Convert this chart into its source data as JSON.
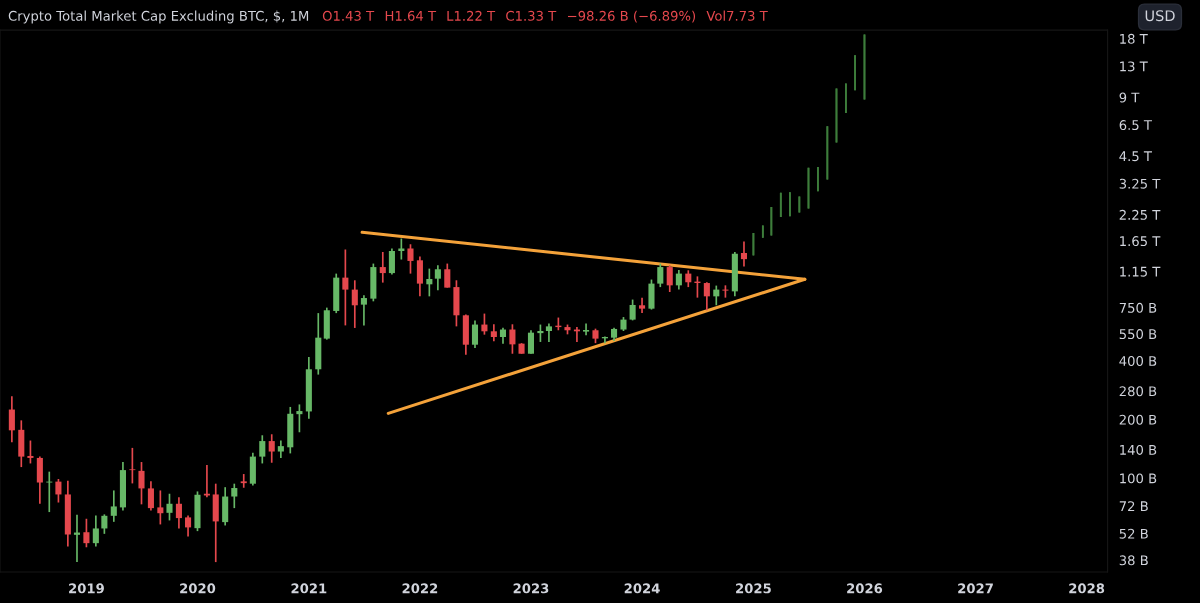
{
  "chart_data": {
    "type": "candlestick",
    "title": "Crypto Total Market Cap Excluding BTC, $, 1M",
    "annotations": [
      "O1.43 T",
      "H1.64 T",
      "L1.22 T",
      "C1.33 T",
      "−98.26 B (−6.89%)",
      "Vol7.73 T",
      "USD"
    ],
    "xlim": [
      "2018-03-23",
      "2028-03-10"
    ],
    "xticks": [
      {
        "value": "2019-01",
        "label": "2019"
      },
      {
        "value": "2020-01",
        "label": "2020"
      },
      {
        "value": "2021-01",
        "label": "2021"
      },
      {
        "value": "2022-01",
        "label": "2022"
      },
      {
        "value": "2023-01",
        "label": "2023"
      },
      {
        "value": "2024-01",
        "label": "2024"
      },
      {
        "value": "2025-01",
        "label": "2025"
      },
      {
        "value": "2026-01",
        "label": "2026"
      },
      {
        "value": "2027-01",
        "label": "2027"
      },
      {
        "value": "2028-01",
        "label": "2028"
      }
    ],
    "log": "y",
    "ylim": [
      33000000000.0,
      19900000000000.0
    ],
    "yticks": [
      {
        "value": 38000000000.0,
        "label": "38 B"
      },
      {
        "value": 52000000000.0,
        "label": "52 B"
      },
      {
        "value": 72000000000.0,
        "label": "72 B"
      },
      {
        "value": 100000000000.0,
        "label": "100 B"
      },
      {
        "value": 140000000000.0,
        "label": "140 B"
      },
      {
        "value": 200000000000.0,
        "label": "200 B"
      },
      {
        "value": 280000000000.0,
        "label": "280 B"
      },
      {
        "value": 400000000000.0,
        "label": "400 B"
      },
      {
        "value": 550000000000.0,
        "label": "550 B"
      },
      {
        "value": 750000000000.0,
        "label": "750 B"
      },
      {
        "value": 1150000000000.0,
        "label": "1.15 T"
      },
      {
        "value": 1650000000000.0,
        "label": "1.65 T"
      },
      {
        "value": 2250000000000.0,
        "label": "2.25 T"
      },
      {
        "value": 3250000000000.0,
        "label": "3.25 T"
      },
      {
        "value": 4500000000000.0,
        "label": "4.5 T"
      },
      {
        "value": 6500000000000.0,
        "label": "6.5 T"
      },
      {
        "value": 9000000000000.0,
        "label": "9 T"
      },
      {
        "value": 13000000000000.0,
        "label": "13 T"
      },
      {
        "value": 18000000000000.0,
        "label": "18 T"
      }
    ],
    "series": [
      {
        "type": "candlestick",
        "x": [
          "2018-05",
          "2018-06",
          "2018-07",
          "2018-08",
          "2018-09",
          "2018-10",
          "2018-11",
          "2018-12",
          "2019-01",
          "2019-02",
          "2019-03",
          "2019-04",
          "2019-05",
          "2019-06",
          "2019-07",
          "2019-08",
          "2019-09",
          "2019-10",
          "2019-11",
          "2019-12",
          "2020-01",
          "2020-02",
          "2020-03",
          "2020-04",
          "2020-05",
          "2020-06",
          "2020-07",
          "2020-08",
          "2020-09",
          "2020-10",
          "2020-11",
          "2020-12",
          "2021-01",
          "2021-02",
          "2021-03",
          "2021-04",
          "2021-05",
          "2021-06",
          "2021-07",
          "2021-08",
          "2021-09",
          "2021-10",
          "2021-11",
          "2021-12",
          "2022-01",
          "2022-02",
          "2022-03",
          "2022-04",
          "2022-05",
          "2022-06",
          "2022-07",
          "2022-08",
          "2022-09",
          "2022-10",
          "2022-11",
          "2022-12",
          "2023-01",
          "2023-02",
          "2023-03",
          "2023-04",
          "2023-05",
          "2023-06",
          "2023-07",
          "2023-08",
          "2023-09",
          "2023-10",
          "2023-11",
          "2023-12",
          "2024-01",
          "2024-02",
          "2024-03",
          "2024-04",
          "2024-05",
          "2024-06",
          "2024-07",
          "2024-08",
          "2024-09",
          "2024-10",
          "2024-11",
          "2024-12"
        ],
        "ohlc": [
          [
            225000000000.0,
            263000000000.0,
            153000000000.0,
            176000000000.0
          ],
          [
            177000000000.0,
            198000000000.0,
            114000000000.0,
            129000000000.0
          ],
          [
            130000000000.0,
            156000000000.0,
            119000000000.0,
            127000000000.0
          ],
          [
            127000000000.0,
            129000000000.0,
            74000000000.0,
            95000000000.0
          ],
          [
            95000000000.0,
            108000000000.0,
            67000000000.0,
            96000000000.0
          ],
          [
            96000000000.0,
            99000000000.0,
            75000000000.0,
            82500000000.0
          ],
          [
            82500000000.0,
            97000000000.0,
            44600000000.0,
            51400000000.0
          ],
          [
            51200000000.0,
            65000000000.0,
            37100000000.0,
            52600000000.0
          ],
          [
            52800000000.0,
            61900000000.0,
            44200000000.0,
            46400000000.0
          ],
          [
            46400000000.0,
            64400000000.0,
            44600000000.0,
            55200000000.0
          ],
          [
            55200000000.0,
            65200000000.0,
            51800000000.0,
            64100000000.0
          ],
          [
            64100000000.0,
            86500000000.0,
            59700000000.0,
            71600000000.0
          ],
          [
            70800000000.0,
            121000000000.0,
            68300000000.0,
            110000000000.0
          ],
          [
            111000000000.0,
            143000000000.0,
            94000000000.0,
            110000000000.0
          ],
          [
            109000000000.0,
            121000000000.0,
            73400000000.0,
            88600000000.0
          ],
          [
            88600000000.0,
            96300000000.0,
            68300000000.0,
            70200000000.0
          ],
          [
            70800000000.0,
            86500000000.0,
            57900000000.0,
            66100000000.0
          ],
          [
            66400000000.0,
            83200000000.0,
            60700000000.0,
            73900000000.0
          ],
          [
            73900000000.0,
            79900000000.0,
            55200000000.0,
            62400000000.0
          ],
          [
            62900000000.0,
            64400000000.0,
            50200000000.0,
            55900000000.0
          ],
          [
            55400000000.0,
            85500000000.0,
            53500000000.0,
            82200000000.0
          ],
          [
            83200000000.0,
            117000000000.0,
            79900000000.0,
            81500000000.0
          ],
          [
            82500000000.0,
            93700000000.0,
            37100000000.0,
            60000000000.0
          ],
          [
            59500000000.0,
            89900000000.0,
            57200000000.0,
            80500000000.0
          ],
          [
            80500000000.0,
            93700000000.0,
            70200000000.0,
            89000000000.0
          ],
          [
            96300000000.0,
            105000000000.0,
            89300000000.0,
            94300000000.0
          ],
          [
            93700000000.0,
            135000000000.0,
            91800000000.0,
            129000000000.0
          ],
          [
            129000000000.0,
            166000000000.0,
            119000000000.0,
            155000000000.0
          ],
          [
            155000000000.0,
            168000000000.0,
            120000000000.0,
            137000000000.0
          ],
          [
            137000000000.0,
            156000000000.0,
            127000000000.0,
            146000000000.0
          ],
          [
            144000000000.0,
            232000000000.0,
            134000000000.0,
            214000000000.0
          ],
          [
            213000000000.0,
            239000000000.0,
            172000000000.0,
            221000000000.0
          ],
          [
            220000000000.0,
            418000000000.0,
            202000000000.0,
            362000000000.0
          ],
          [
            362000000000.0,
            703000000000.0,
            340000000000.0,
            526000000000.0
          ],
          [
            520000000000.0,
            750000000000.0,
            514000000000.0,
            727000000000.0
          ],
          [
            721000000000.0,
            1121000000000.0,
            703000000000.0,
            1069000000000.0
          ],
          [
            1069000000000.0,
            1489000000000.0,
            608000000000.0,
            928000000000.0
          ],
          [
            928000000000.0,
            1036000000000.0,
            590000000000.0,
            771000000000.0
          ],
          [
            777000000000.0,
            867000000000.0,
            608000000000.0,
            840000000000.0
          ],
          [
            834000000000.0,
            1262000000000.0,
            808000000000.0,
            1211000000000.0
          ],
          [
            1211000000000.0,
            1447000000000.0,
            1008000000000.0,
            1128000000000.0
          ],
          [
            1128000000000.0,
            1507000000000.0,
            1108000000000.0,
            1464000000000.0
          ],
          [
            1464000000000.0,
            1695000000000.0,
            1324000000000.0,
            1507000000000.0
          ],
          [
            1507000000000.0,
            1586000000000.0,
            1121000000000.0,
            1302000000000.0
          ],
          [
            1312000000000.0,
            1374000000000.0,
            857000000000.0,
            996000000000.0
          ],
          [
            988000000000.0,
            1189000000000.0,
            857000000000.0,
            1052000000000.0
          ],
          [
            1056000000000.0,
            1237000000000.0,
            920000000000.0,
            1180000000000.0
          ],
          [
            1180000000000.0,
            1262000000000.0,
            950000000000.0,
            950000000000.0
          ],
          [
            956000000000.0,
            1036000000000.0,
            601000000000.0,
            685000000000.0
          ],
          [
            685000000000.0,
            691000000000.0,
            430000000000.0,
            484000000000.0
          ],
          [
            484000000000.0,
            645000000000.0,
            465000000000.0,
            614000000000.0
          ],
          [
            614000000000.0,
            699000000000.0,
            545000000000.0,
            567000000000.0
          ],
          [
            567000000000.0,
            616000000000.0,
            504000000000.0,
            530000000000.0
          ],
          [
            530000000000.0,
            592000000000.0,
            490000000000.0,
            579000000000.0
          ],
          [
            579000000000.0,
            616000000000.0,
            435000000000.0,
            486000000000.0
          ],
          [
            490000000000.0,
            493000000000.0,
            435000000000.0,
            435000000000.0
          ],
          [
            435000000000.0,
            574000000000.0,
            435000000000.0,
            558000000000.0
          ],
          [
            555000000000.0,
            614000000000.0,
            500000000000.0,
            569000000000.0
          ],
          [
            569000000000.0,
            621000000000.0,
            500000000000.0,
            601000000000.0
          ],
          [
            606000000000.0,
            667000000000.0,
            574000000000.0,
            596000000000.0
          ],
          [
            596000000000.0,
            614000000000.0,
            547000000000.0,
            574000000000.0
          ],
          [
            579000000000.0,
            596000000000.0,
            500000000000.0,
            567000000000.0
          ],
          [
            565000000000.0,
            621000000000.0,
            541000000000.0,
            576000000000.0
          ],
          [
            574000000000.0,
            585000000000.0,
            493000000000.0,
            520000000000.0
          ],
          [
            522000000000.0,
            534000000000.0,
            493000000000.0,
            530000000000.0
          ],
          [
            526000000000.0,
            592000000000.0,
            505000000000.0,
            583000000000.0
          ],
          [
            579000000000.0,
            671000000000.0,
            569000000000.0,
            651000000000.0
          ],
          [
            651000000000.0,
            825000000000.0,
            645000000000.0,
            774000000000.0
          ],
          [
            771000000000.0,
            844000000000.0,
            703000000000.0,
            741000000000.0
          ],
          [
            741000000000.0,
            1045000000000.0,
            733000000000.0,
            996000000000.0
          ],
          [
            996000000000.0,
            1262000000000.0,
            956000000000.0,
            1211000000000.0
          ],
          [
            1211000000000.0,
            1237000000000.0,
            902000000000.0,
            976000000000.0
          ],
          [
            976000000000.0,
            1170000000000.0,
            928000000000.0,
            1121000000000.0
          ],
          [
            1121000000000.0,
            1166000000000.0,
            956000000000.0,
            1012000000000.0
          ],
          [
            1020000000000.0,
            1085000000000.0,
            844000000000.0,
            1003000000000.0
          ],
          [
            1003000000000.0,
            1012000000000.0,
            727000000000.0,
            857000000000.0
          ],
          [
            857000000000.0,
            973000000000.0,
            771000000000.0,
            928000000000.0
          ],
          [
            928000000000.0,
            976000000000.0,
            844000000000.0,
            917000000000.0
          ],
          [
            909000000000.0,
            1447000000000.0,
            857000000000.0,
            1419000000000.0
          ],
          [
            1430000000000.0,
            1640000000000.0,
            1220000000000.0,
            1330000000000.0
          ]
        ],
        "colors": [
          "#e5484d",
          "#e5484d",
          "#e5484d",
          "#e5484d",
          "#67b867",
          "#e5484d",
          "#e5484d",
          "#67b867",
          "#e5484d",
          "#67b867",
          "#67b867",
          "#67b867",
          "#67b867",
          "#e5484d",
          "#e5484d",
          "#e5484d",
          "#e5484d",
          "#67b867",
          "#e5484d",
          "#e5484d",
          "#67b867",
          "#e5484d",
          "#e5484d",
          "#67b867",
          "#67b867",
          "#e5484d",
          "#67b867",
          "#67b867",
          "#e5484d",
          "#67b867",
          "#67b867",
          "#67b867",
          "#67b867",
          "#67b867",
          "#67b867",
          "#67b867",
          "#e5484d",
          "#e5484d",
          "#67b867",
          "#67b867",
          "#e5484d",
          "#67b867",
          "#67b867",
          "#e5484d",
          "#e5484d",
          "#67b867",
          "#67b867",
          "#e5484d",
          "#e5484d",
          "#e5484d",
          "#67b867",
          "#e5484d",
          "#e5484d",
          "#67b867",
          "#e5484d",
          "#e5484d",
          "#67b867",
          "#67b867",
          "#67b867",
          "#e5484d",
          "#e5484d",
          "#e5484d",
          "#67b867",
          "#e5484d",
          "#67b867",
          "#67b867",
          "#67b867",
          "#67b867",
          "#e5484d",
          "#67b867",
          "#67b867",
          "#e5484d",
          "#67b867",
          "#e5484d",
          "#e5484d",
          "#e5484d",
          "#67b867",
          "#e5484d",
          "#67b867",
          "#e5484d"
        ]
      },
      {
        "type": "candlestick",
        "color": "#3d7d3b",
        "x": [
          "2025-01",
          "2025-02",
          "2025-03",
          "2025-04",
          "2025-05",
          "2025-06",
          "2025-07",
          "2025-08",
          "2025-09",
          "2025-10",
          "2025-11",
          "2025-12",
          "2026-01"
        ],
        "ohlc": [
          [
            1390000000000.0,
            1810000000000.0,
            1390000000000.0,
            1810000000000.0
          ],
          [
            1710000000000.0,
            1980000000000.0,
            1710000000000.0,
            1980000000000.0
          ],
          [
            1760000000000.0,
            2460000000000.0,
            1760000000000.0,
            2460000000000.0
          ],
          [
            2190000000000.0,
            2910000000000.0,
            2190000000000.0,
            2910000000000.0
          ],
          [
            2210000000000.0,
            2930000000000.0,
            2210000000000.0,
            2930000000000.0
          ],
          [
            2310000000000.0,
            2790000000000.0,
            2310000000000.0,
            2790000000000.0
          ],
          [
            2420000000000.0,
            3920000000000.0,
            2420000000000.0,
            3920000000000.0
          ],
          [
            2970000000000.0,
            3950000000000.0,
            2970000000000.0,
            3950000000000.0
          ],
          [
            3410000000000.0,
            6390000000000.0,
            3410000000000.0,
            6390000000000.0
          ],
          [
            5270000000000.0,
            9990000000000.0,
            5270000000000.0,
            9990000000000.0
          ],
          [
            7480000000000.0,
            10600000000000.0,
            7480000000000.0,
            10600000000000.0
          ],
          [
            9790000000000.0,
            14800000000000.0,
            9790000000000.0,
            14800000000000.0
          ],
          [
            8780000000000.0,
            18900000000000.0,
            8780000000000.0,
            18900000000000.0
          ]
        ]
      },
      {
        "type": "line",
        "color": "#f4a23a",
        "x": [
          "2021-06-25",
          "2025-06-19"
        ],
        "values": [
          1826000000000.0,
          1048000000000.0
        ]
      },
      {
        "type": "line",
        "color": "#f4a23a",
        "x": [
          "2021-09-19",
          "2025-06-19"
        ],
        "values": [
          215000000000.0,
          1048000000000.0
        ]
      }
    ]
  }
}
